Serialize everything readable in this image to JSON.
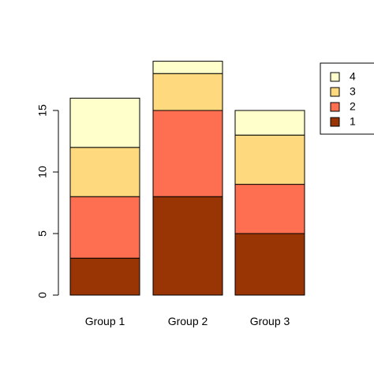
{
  "chart_data": {
    "type": "bar",
    "stacked": true,
    "categories": [
      "Group 1",
      "Group 2",
      "Group 3"
    ],
    "series": [
      {
        "name": "1",
        "values": [
          3,
          8,
          5
        ],
        "color": "#993404"
      },
      {
        "name": "2",
        "values": [
          5,
          7,
          4
        ],
        "color": "#FE6E50"
      },
      {
        "name": "3",
        "values": [
          4,
          3,
          4
        ],
        "color": "#FED97E"
      },
      {
        "name": "4",
        "values": [
          4,
          1,
          2
        ],
        "color": "#FFFFCC"
      }
    ],
    "title": "",
    "xlabel": "",
    "ylabel": "",
    "ylim": [
      0,
      19
    ],
    "yticks": [
      0,
      5,
      10,
      15
    ],
    "grid": false,
    "legend": {
      "position": "top-right",
      "order": [
        "4",
        "3",
        "2",
        "1"
      ]
    }
  }
}
